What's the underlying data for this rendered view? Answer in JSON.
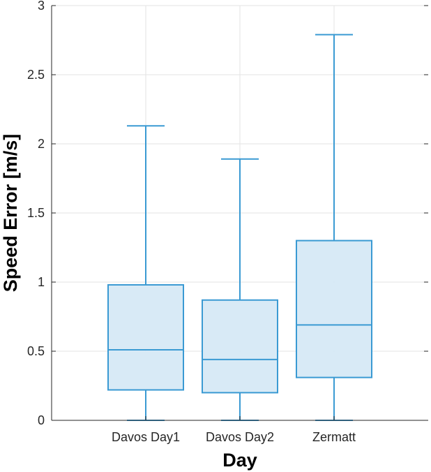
{
  "chart_data": {
    "type": "boxplot",
    "title": "",
    "xlabel": "Day",
    "ylabel": "Speed Error [m/s]",
    "ylim": [
      0,
      3
    ],
    "yticks": [
      0,
      0.5,
      1,
      1.5,
      2,
      2.5,
      3
    ],
    "ytick_labels": [
      "0",
      "0.5",
      "1",
      "1.5",
      "2",
      "2.5",
      "3"
    ],
    "grid": true,
    "categories": [
      "Davos Day1",
      "Davos Day2",
      "Zermatt"
    ],
    "boxes": [
      {
        "name": "Davos Day1",
        "min": 0,
        "q1": 0.22,
        "median": 0.51,
        "q3": 0.98,
        "max": 2.13
      },
      {
        "name": "Davos Day2",
        "min": 0,
        "q1": 0.2,
        "median": 0.44,
        "q3": 0.87,
        "max": 1.89
      },
      {
        "name": "Zermatt",
        "min": 0,
        "q1": 0.31,
        "median": 0.69,
        "q3": 1.3,
        "max": 2.79
      }
    ],
    "colors": {
      "stroke": "#3a9ad3",
      "fill": "#d6e9f6",
      "axis": "#262626",
      "grid": "#e3e3e3"
    }
  }
}
